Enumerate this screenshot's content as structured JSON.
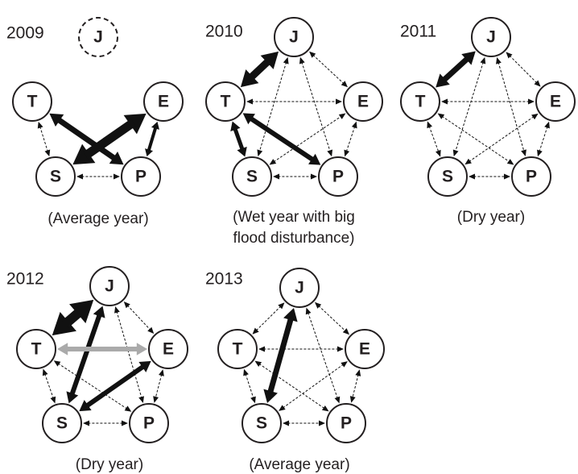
{
  "panels": [
    {
      "year": "2009",
      "nodes": [
        "J",
        "T",
        "E",
        "S",
        "P"
      ],
      "caption": [
        "(Average year)"
      ]
    },
    {
      "year": "2010",
      "nodes": [
        "J",
        "T",
        "E",
        "S",
        "P"
      ],
      "caption": [
        "(Wet year with big",
        "flood disturbance)"
      ]
    },
    {
      "year": "2011",
      "nodes": [
        "J",
        "T",
        "E",
        "S",
        "P"
      ],
      "caption": [
        "(Dry year)"
      ]
    },
    {
      "year": "2012",
      "nodes": [
        "J",
        "T",
        "E",
        "S",
        "P"
      ],
      "caption": [
        "(Dry year)"
      ]
    },
    {
      "year": "2013",
      "nodes": [
        "J",
        "T",
        "E",
        "S",
        "P"
      ],
      "caption": [
        "(Average year)"
      ]
    }
  ]
}
